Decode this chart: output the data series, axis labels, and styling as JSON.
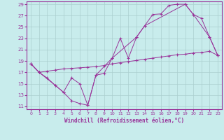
{
  "bg_color": "#c8ecec",
  "grid_color": "#aacece",
  "line_color": "#993399",
  "xlabel": "Windchill (Refroidissement éolien,°C)",
  "xlim": [
    -0.5,
    23.5
  ],
  "ylim": [
    10.5,
    29.5
  ],
  "xticks": [
    0,
    1,
    2,
    3,
    4,
    5,
    6,
    7,
    8,
    9,
    10,
    11,
    12,
    13,
    14,
    15,
    16,
    17,
    18,
    19,
    20,
    21,
    22,
    23
  ],
  "yticks": [
    11,
    13,
    15,
    17,
    19,
    21,
    23,
    25,
    27,
    29
  ],
  "curve1_x": [
    0,
    1,
    2,
    3,
    4,
    5,
    6,
    7,
    8,
    9,
    10,
    11,
    12,
    13,
    14,
    15,
    16,
    17,
    18,
    19,
    20,
    21,
    22,
    23
  ],
  "curve1_y": [
    18.5,
    17.0,
    16.0,
    14.7,
    13.5,
    12.0,
    11.5,
    11.2,
    16.5,
    16.8,
    19.5,
    23.0,
    19.5,
    23.2,
    25.2,
    27.2,
    27.3,
    28.8,
    29.0,
    29.0,
    27.2,
    26.5,
    23.2,
    20.0
  ],
  "curve2_x": [
    0,
    1,
    2,
    3,
    4,
    5,
    6,
    7,
    8,
    9,
    10,
    11,
    12,
    13,
    14,
    15,
    16,
    17,
    18,
    19,
    20,
    21,
    22,
    23
  ],
  "curve2_y": [
    18.5,
    17.0,
    17.2,
    17.4,
    17.6,
    17.7,
    17.8,
    17.9,
    18.0,
    18.2,
    18.5,
    18.7,
    18.9,
    19.1,
    19.3,
    19.5,
    19.7,
    19.9,
    20.1,
    20.2,
    20.4,
    20.5,
    20.7,
    20.0
  ],
  "curve3_x": [
    0,
    1,
    3,
    4,
    5,
    6,
    7,
    8,
    10,
    13,
    14,
    19,
    20,
    22,
    23
  ],
  "curve3_y": [
    18.5,
    17.0,
    14.7,
    13.5,
    16.0,
    15.0,
    11.2,
    16.5,
    19.5,
    23.2,
    25.2,
    29.0,
    27.2,
    23.2,
    20.0
  ]
}
